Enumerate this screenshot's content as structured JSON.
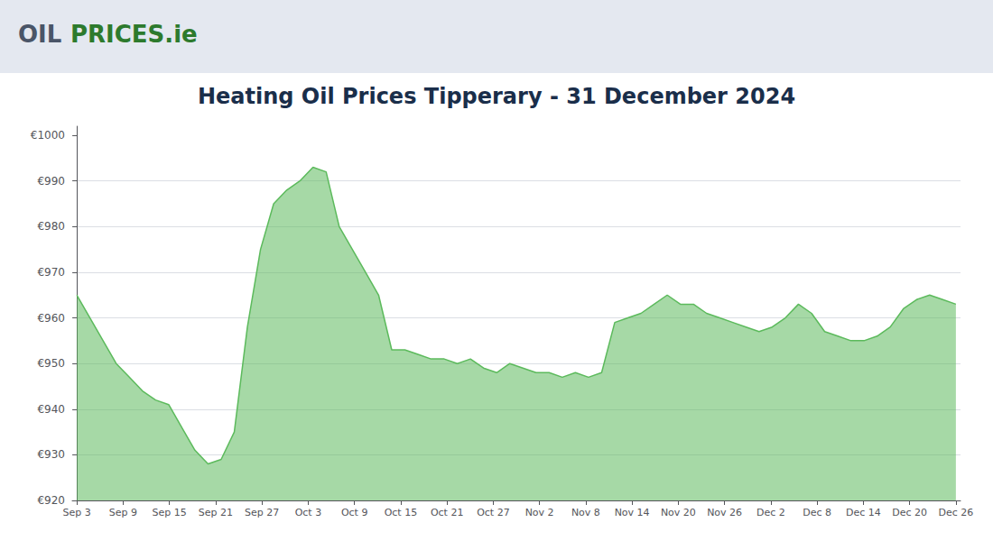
{
  "chart_data": {
    "type": "area",
    "title": "Heating Oil Prices Tipperary - 31 December 2024",
    "annotations": [
      {
        "text": "OIL",
        "color": "#4a5568"
      },
      {
        "text": "PRICES.ie",
        "color": "#2d7a2d"
      }
    ],
    "x": [
      0,
      0.2836,
      0.5672,
      0.8507,
      1.1343,
      1.4179,
      1.7015,
      1.9851,
      2.2687,
      2.5522,
      2.8358,
      3.1194,
      3.403,
      3.6866,
      3.9701,
      4.2537,
      4.5373,
      4.8209,
      5.1045,
      5.3881,
      5.6716,
      5.9552,
      6.2388,
      6.5224,
      6.806,
      7.0896,
      7.3731,
      7.6567,
      7.9403,
      8.2239,
      8.5075,
      8.791,
      9.0746,
      9.3582,
      9.6418,
      9.9254,
      10.209,
      10.4925,
      10.7761,
      11.0597,
      11.3433,
      11.6269,
      11.9104,
      12.194,
      12.4776,
      12.7612,
      13.0448,
      13.3284,
      13.6119,
      13.8955,
      14.1791,
      14.4627,
      14.7463,
      15.0299,
      15.3134,
      15.597,
      15.8806,
      16.1642,
      16.4478,
      16.7313,
      17.0149,
      17.2985,
      17.5821,
      17.8657,
      18.1493,
      18.4328,
      18.7164,
      19
    ],
    "values": [
      965,
      960,
      955,
      950,
      947,
      944,
      942,
      941,
      936,
      931,
      928,
      929,
      935,
      958,
      975,
      985,
      988,
      990,
      993,
      992,
      980,
      975,
      970,
      965,
      953,
      953,
      952,
      951,
      951,
      950,
      951,
      949,
      948,
      950,
      949,
      948,
      948,
      947,
      948,
      947,
      948,
      959,
      960,
      961,
      963,
      965,
      963,
      963,
      961,
      960,
      959,
      958,
      957,
      958,
      960,
      963,
      961,
      957,
      956,
      955,
      955,
      956,
      958,
      962,
      964,
      965,
      964,
      963
    ],
    "color": "#5cba5c",
    "xlim": [
      -0.1,
      19.1
    ],
    "xticks": [
      {
        "value": 0,
        "label": "Sep 3"
      },
      {
        "value": 1,
        "label": "Sep 9"
      },
      {
        "value": 2,
        "label": "Sep 15"
      },
      {
        "value": 3,
        "label": "Sep 21"
      },
      {
        "value": 4,
        "label": "Sep 27"
      },
      {
        "value": 5,
        "label": "Oct 3"
      },
      {
        "value": 6,
        "label": "Oct 9"
      },
      {
        "value": 7,
        "label": "Oct 15"
      },
      {
        "value": 8,
        "label": "Oct 21"
      },
      {
        "value": 9,
        "label": "Oct 27"
      },
      {
        "value": 10,
        "label": "Nov 2"
      },
      {
        "value": 11,
        "label": "Nov 8"
      },
      {
        "value": 12,
        "label": "Nov 14"
      },
      {
        "value": 13,
        "label": "Nov 20"
      },
      {
        "value": 14,
        "label": "Nov 26"
      },
      {
        "value": 15,
        "label": "Dec 2"
      },
      {
        "value": 16,
        "label": "Dec 8"
      },
      {
        "value": 17,
        "label": "Dec 14"
      },
      {
        "value": 18,
        "label": "Dec 20"
      },
      {
        "value": 19,
        "label": "Dec 26"
      }
    ],
    "ylim": [
      920,
      1002
    ],
    "yticks": [
      {
        "value": 920,
        "label": "€920"
      },
      {
        "value": 930,
        "label": "€930"
      },
      {
        "value": 940,
        "label": "€940"
      },
      {
        "value": 950,
        "label": "€950"
      },
      {
        "value": 960,
        "label": "€960"
      },
      {
        "value": 970,
        "label": "€970"
      },
      {
        "value": 980,
        "label": "€980"
      },
      {
        "value": 990,
        "label": "€990"
      },
      {
        "value": 1000,
        "label": "€1000"
      }
    ],
    "grid": "y"
  }
}
